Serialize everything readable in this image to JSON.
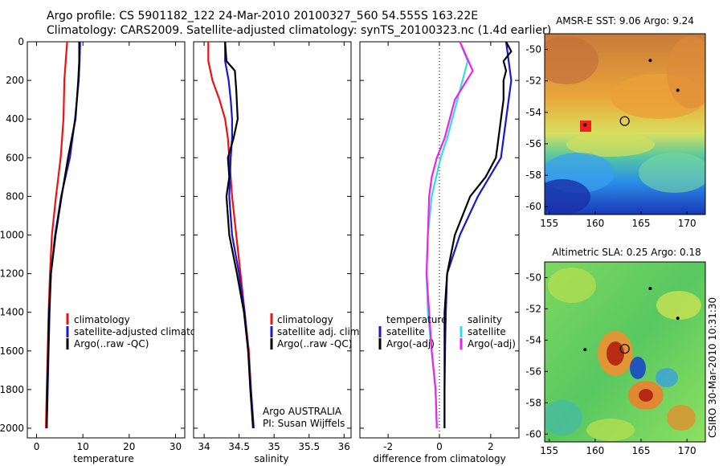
{
  "header": {
    "line1": "Argo profile: CS 5901182_122 24-Mar-2010 20100327_560 54.555S 163.22E",
    "line2": "Climatology: CARS2009. Satellite-adjusted climatology: synTS_20100323.nc (1.4d earlier)"
  },
  "side_label": "CSIRO 30-Mar-2010 10:31:30",
  "colors": {
    "red": "#ee1111",
    "blue": "#1818cc",
    "black": "#000000",
    "cyan": "#33dddd",
    "magenta": "#ee22ee"
  },
  "chart_data": [
    {
      "id": "temperature",
      "type": "line",
      "xlabel": "temperature",
      "xlim": [
        -2,
        32
      ],
      "ylim": [
        0,
        2050
      ],
      "xticks": [
        0,
        10,
        20,
        30
      ],
      "yticks": [
        0,
        200,
        400,
        600,
        800,
        1000,
        1200,
        1400,
        1600,
        1800,
        2000
      ],
      "legend": {
        "placement": "bottom-right",
        "entries": [
          "climatology",
          "satellite-adjusted climatology",
          "Argo(..raw -QC)"
        ]
      },
      "series": [
        {
          "name": "climatology",
          "color": "red",
          "points": [
            [
              6.6,
              0
            ],
            [
              6.3,
              100
            ],
            [
              6.0,
              200
            ],
            [
              5.8,
              400
            ],
            [
              5.2,
              600
            ],
            [
              4.2,
              800
            ],
            [
              3.3,
              1000
            ],
            [
              2.9,
              1200
            ],
            [
              2.6,
              1400
            ],
            [
              2.4,
              1600
            ],
            [
              2.2,
              1800
            ],
            [
              2.0,
              2000
            ]
          ]
        },
        {
          "name": "satellite-adjusted climatology",
          "color": "blue",
          "points": [
            [
              9.4,
              0
            ],
            [
              9.3,
              100
            ],
            [
              9.1,
              200
            ],
            [
              8.3,
              400
            ],
            [
              7.2,
              600
            ],
            [
              5.3,
              800
            ],
            [
              4.0,
              1000
            ],
            [
              3.1,
              1200
            ],
            [
              2.8,
              1400
            ],
            [
              2.6,
              1600
            ],
            [
              2.4,
              1800
            ],
            [
              2.2,
              2000
            ]
          ]
        },
        {
          "name": "Argo(..raw -QC)",
          "color": "black",
          "points": [
            [
              9.2,
              0
            ],
            [
              9.2,
              100
            ],
            [
              9.0,
              200
            ],
            [
              8.4,
              400
            ],
            [
              7.6,
              500
            ],
            [
              6.8,
              600
            ],
            [
              5.4,
              800
            ],
            [
              4.1,
              1000
            ],
            [
              3.1,
              1200
            ],
            [
              2.7,
              1400
            ],
            [
              2.5,
              1600
            ],
            [
              2.3,
              1800
            ],
            [
              2.2,
              2000
            ]
          ]
        }
      ]
    },
    {
      "id": "salinity",
      "type": "line",
      "xlabel": "salinity",
      "xlim": [
        33.85,
        36.1
      ],
      "ylim": [
        0,
        2050
      ],
      "xticks": [
        34,
        34.5,
        35,
        35.5,
        36
      ],
      "yticks": [
        0,
        200,
        400,
        600,
        800,
        1000,
        1200,
        1400,
        1600,
        1800,
        2000
      ],
      "legend": {
        "placement": "bottom-right",
        "entries": [
          "climatology",
          "satellite adj. clim.",
          "Argo(..raw -QC)"
        ]
      },
      "annotation": [
        "Argo AUSTRALIA",
        "PI: Susan Wijffels"
      ],
      "series": [
        {
          "name": "climatology",
          "color": "red",
          "points": [
            [
              34.06,
              0
            ],
            [
              34.06,
              100
            ],
            [
              34.12,
              200
            ],
            [
              34.22,
              300
            ],
            [
              34.3,
              400
            ],
            [
              34.34,
              500
            ],
            [
              34.36,
              600
            ],
            [
              34.4,
              800
            ],
            [
              34.46,
              1000
            ],
            [
              34.52,
              1200
            ],
            [
              34.58,
              1400
            ],
            [
              34.64,
              1600
            ],
            [
              34.67,
              1800
            ],
            [
              34.7,
              2000
            ]
          ]
        },
        {
          "name": "satellite adj. clim.",
          "color": "blue",
          "points": [
            [
              34.3,
              0
            ],
            [
              34.3,
              100
            ],
            [
              34.35,
              200
            ],
            [
              34.38,
              300
            ],
            [
              34.4,
              400
            ],
            [
              34.4,
              500
            ],
            [
              34.38,
              600
            ],
            [
              34.36,
              800
            ],
            [
              34.4,
              1000
            ],
            [
              34.5,
              1200
            ],
            [
              34.58,
              1400
            ],
            [
              34.63,
              1600
            ],
            [
              34.67,
              1800
            ],
            [
              34.71,
              2000
            ]
          ]
        },
        {
          "name": "Argo(..raw -QC)",
          "color": "black",
          "points": [
            [
              34.3,
              0
            ],
            [
              34.32,
              100
            ],
            [
              34.44,
              150
            ],
            [
              34.46,
              250
            ],
            [
              34.48,
              400
            ],
            [
              34.42,
              500
            ],
            [
              34.34,
              600
            ],
            [
              34.36,
              700
            ],
            [
              34.32,
              800
            ],
            [
              34.36,
              1000
            ],
            [
              34.47,
              1200
            ],
            [
              34.57,
              1400
            ],
            [
              34.63,
              1600
            ],
            [
              34.66,
              1800
            ],
            [
              34.7,
              2000
            ]
          ]
        }
      ]
    },
    {
      "id": "difference",
      "type": "line",
      "xlabel": "difference from climatology",
      "xlim": [
        -3.1,
        3.1
      ],
      "ylim": [
        0,
        2050
      ],
      "xticks": [
        -2,
        0,
        2
      ],
      "yticks": [
        0,
        200,
        400,
        600,
        800,
        1000,
        1200,
        1400,
        1600,
        1800,
        2000
      ],
      "legend": {
        "placement": "bottom",
        "temperature_title": "temperature",
        "salinity_title": "salinity",
        "temperature_entries": [
          "satellite",
          "Argo(-adj)"
        ],
        "salinity_entries": [
          "satellite",
          "Argo(-adj)"
        ]
      },
      "series": [
        {
          "name": "temperature satellite",
          "color": "blue",
          "points": [
            [
              2.6,
              0
            ],
            [
              2.7,
              100
            ],
            [
              2.8,
              200
            ],
            [
              2.6,
              400
            ],
            [
              2.4,
              600
            ],
            [
              1.5,
              800
            ],
            [
              0.8,
              1000
            ],
            [
              0.3,
              1200
            ],
            [
              0.25,
              1400
            ],
            [
              0.22,
              1600
            ],
            [
              0.2,
              1800
            ],
            [
              0.2,
              2000
            ]
          ]
        },
        {
          "name": "temperature Argo(-adj)",
          "color": "black",
          "points": [
            [
              2.6,
              0
            ],
            [
              2.8,
              50
            ],
            [
              2.5,
              100
            ],
            [
              2.6,
              150
            ],
            [
              2.5,
              200
            ],
            [
              2.5,
              300
            ],
            [
              2.4,
              400
            ],
            [
              2.3,
              500
            ],
            [
              2.2,
              600
            ],
            [
              1.8,
              700
            ],
            [
              1.2,
              800
            ],
            [
              0.6,
              1000
            ],
            [
              0.3,
              1200
            ],
            [
              0.2,
              1400
            ],
            [
              0.2,
              2000
            ]
          ]
        },
        {
          "name": "salinity satellite",
          "color": "cyan",
          "points": [
            [
              0.8,
              0
            ],
            [
              1.1,
              100
            ],
            [
              0.7,
              300
            ],
            [
              0.3,
              500
            ],
            [
              0.05,
              600
            ],
            [
              -0.3,
              800
            ],
            [
              -0.45,
              1000
            ],
            [
              -0.5,
              1200
            ],
            [
              -0.45,
              1400
            ],
            [
              -0.3,
              1600
            ],
            [
              -0.15,
              1800
            ],
            [
              -0.1,
              2000
            ]
          ]
        },
        {
          "name": "salinity Argo(-adj)",
          "color": "magenta",
          "points": [
            [
              0.8,
              0
            ],
            [
              1.3,
              150
            ],
            [
              0.6,
              300
            ],
            [
              0.2,
              500
            ],
            [
              -0.1,
              600
            ],
            [
              -0.3,
              700
            ],
            [
              -0.4,
              800
            ],
            [
              -0.45,
              1000
            ],
            [
              -0.5,
              1200
            ],
            [
              -0.4,
              1400
            ],
            [
              -0.3,
              1600
            ],
            [
              -0.15,
              1800
            ],
            [
              -0.1,
              2000
            ]
          ]
        }
      ]
    },
    {
      "id": "sst_map",
      "type": "heatmap",
      "title": "AMSR-E SST: 9.06  Argo: 9.24",
      "xlim": [
        154.5,
        172
      ],
      "ylim": [
        -60.5,
        -49
      ],
      "xticks": [
        155,
        160,
        165,
        170
      ],
      "yticks": [
        -50,
        -52,
        -54,
        -56,
        -58,
        -60
      ],
      "argo_position": [
        163.22,
        -54.555
      ],
      "other_floats": [
        [
          166.0,
          -50.7
        ],
        [
          169.0,
          -52.6
        ],
        [
          158.9,
          -54.8
        ]
      ]
    },
    {
      "id": "sla_map",
      "type": "heatmap",
      "title": "Altimetric SLA: 0.25  Argo: 0.18",
      "xlim": [
        154.5,
        172
      ],
      "ylim": [
        -60.5,
        -49
      ],
      "xticks": [
        155,
        160,
        165,
        170
      ],
      "yticks": [
        -50,
        -52,
        -54,
        -56,
        -58,
        -60
      ],
      "argo_position": [
        163.22,
        -54.555
      ],
      "other_floats": [
        [
          166.0,
          -50.7
        ],
        [
          169.0,
          -52.6
        ],
        [
          158.9,
          -54.6
        ]
      ]
    }
  ]
}
